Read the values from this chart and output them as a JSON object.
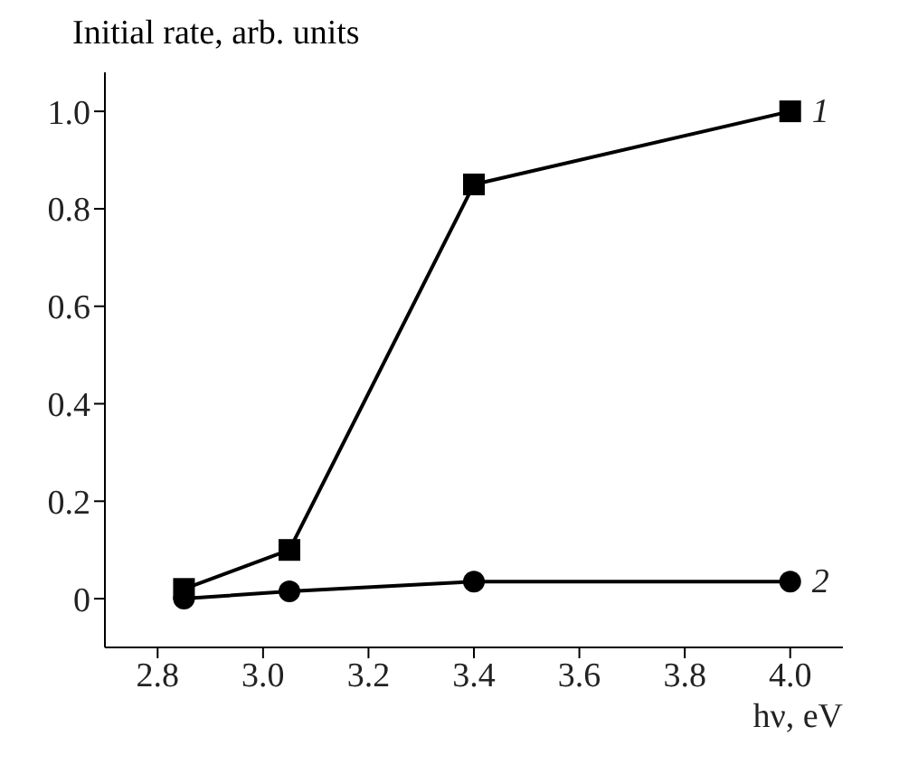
{
  "chart_data": {
    "type": "line",
    "xlabel": "hν, eV",
    "ylabel": "Initial rate, arb. units",
    "xlim": [
      2.7,
      4.1
    ],
    "xticks": [
      2.8,
      {
        "value": 3,
        "label": "3.0"
      },
      3.2,
      3.4,
      3.6,
      3.8,
      {
        "value": 4,
        "label": "4.0"
      }
    ],
    "ylim": [
      -0.1,
      1.08
    ],
    "yticks": [
      0,
      0.2,
      0.4,
      0.6,
      0.8,
      {
        "value": 1,
        "label": "1.0"
      }
    ],
    "x": [
      2.85,
      3.05,
      3.4,
      4.0
    ],
    "series": [
      {
        "name": "1",
        "color": "#000000",
        "marker": "square",
        "values": [
          0.02,
          0.1,
          0.85,
          1.0
        ]
      },
      {
        "name": "2",
        "color": "#000000",
        "marker": "circle",
        "values": [
          0.0,
          0.015,
          0.035,
          0.035
        ]
      }
    ],
    "grid": false,
    "legend": false,
    "line_style": "solid"
  }
}
